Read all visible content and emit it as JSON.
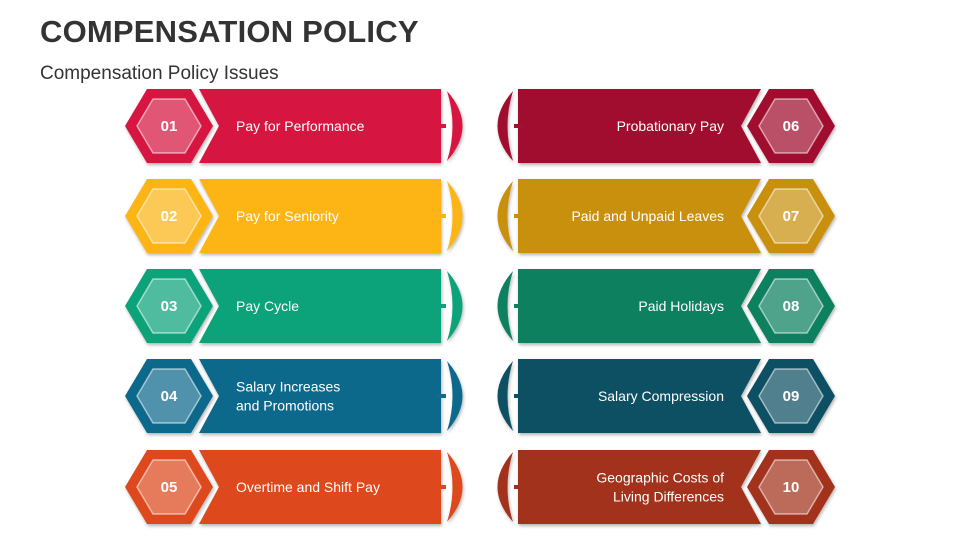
{
  "header": {
    "title": "COMPENSATION POLICY",
    "subtitle": "Compensation Policy Issues"
  },
  "rows": [
    {
      "color": "#D6163F",
      "left": {
        "num": "01",
        "lines": [
          "Pay for Performance"
        ]
      },
      "right": {
        "num": "06",
        "color": "#A0112E",
        "lines": [
          "Probationary Pay"
        ]
      }
    },
    {
      "color": "#FDB515",
      "left": {
        "num": "02",
        "lines": [
          "Pay for Seniority"
        ]
      },
      "right": {
        "num": "07",
        "color": "#C8900C",
        "lines": [
          "Paid and Unpaid Leaves"
        ]
      }
    },
    {
      "color": "#0DA37A",
      "left": {
        "num": "03",
        "lines": [
          "Pay Cycle"
        ]
      },
      "right": {
        "num": "08",
        "color": "#11805E",
        "lines": [
          "Paid Holidays"
        ]
      }
    },
    {
      "color": "#11698C",
      "left": {
        "num": "04",
        "lines": [
          "Salary Increases",
          "and Promotions"
        ]
      },
      "right": {
        "num": "09",
        "color": "#0E4F63",
        "lines": [
          "Salary Compression"
        ]
      }
    },
    {
      "color": "#DD4A1E",
      "left": {
        "num": "05",
        "lines": [
          "Overtime and Shift Pay"
        ]
      },
      "right": {
        "num": "10",
        "color": "#A2311B",
        "lines": [
          "Geographic Costs of",
          "Living Differences"
        ]
      }
    }
  ]
}
